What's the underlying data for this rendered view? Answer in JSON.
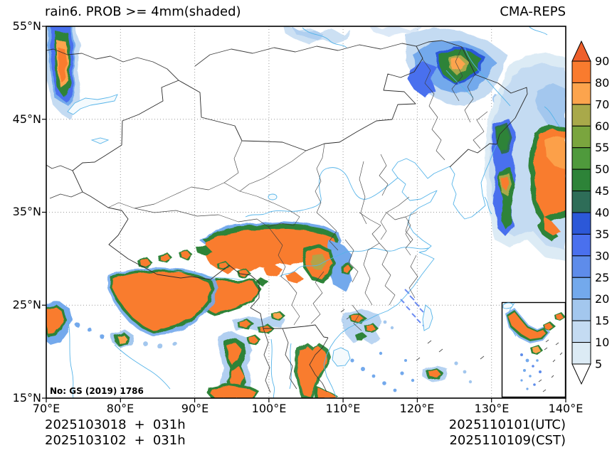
{
  "header": {
    "title": "rain6. PROB >= 4mm(shaded)",
    "model": "CMA-REPS"
  },
  "axes": {
    "lat": [
      "55°N",
      "45°N",
      "35°N",
      "25°N",
      "15°N"
    ],
    "lon": [
      "70°E",
      "80°E",
      "90°E",
      "100°E",
      "110°E",
      "120°E",
      "130°E",
      "140°E"
    ]
  },
  "colorbar": {
    "levels": [
      5,
      10,
      15,
      20,
      25,
      30,
      35,
      40,
      45,
      50,
      55,
      60,
      70,
      80,
      90
    ],
    "colors": [
      "#dcebf5",
      "#c4dbf2",
      "#a3c7ee",
      "#73a9ec",
      "#5e8cea",
      "#4a70ee",
      "#2c58d8",
      "#2e6d58",
      "#2d8338",
      "#4f9a3c",
      "#7aa53e",
      "#a9a94a",
      "#fca44d",
      "#f97b2e"
    ],
    "under_color": "#ffffff",
    "over_color": "#ee5f2b"
  },
  "footer": {
    "left_line1": "2025103018 + 031h",
    "left_line2": "2025103102 + 031h",
    "right_line1": "2025110101(UTC)",
    "right_line2": "2025110109(CST)"
  },
  "map": {
    "watermark": "No: GS (2019) 1786",
    "frame_color": "#000000",
    "grid_color": "#999999",
    "boundary_color": "#2b2b2b",
    "water_color": "#56b4e9"
  }
}
